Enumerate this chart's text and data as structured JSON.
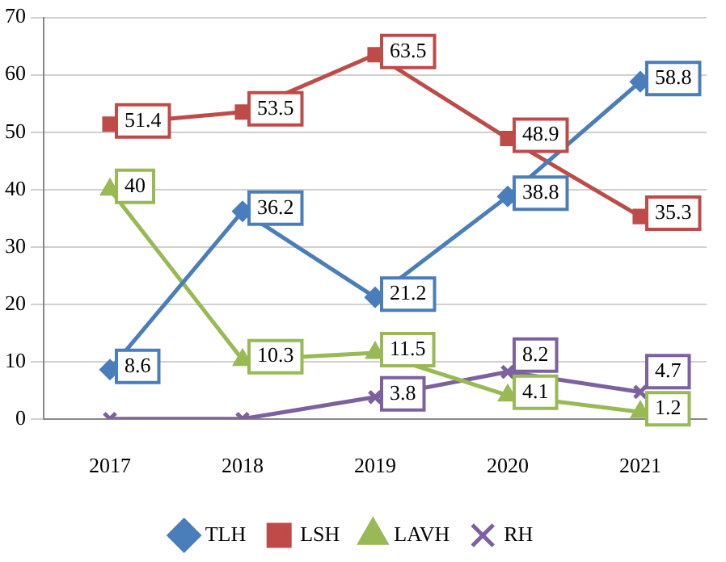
{
  "chart_data": {
    "type": "line",
    "categories": [
      "2017",
      "2018",
      "2019",
      "2020",
      "2021"
    ],
    "series": [
      {
        "name": "TLH",
        "color": "#4a7ebb",
        "marker": "diamond",
        "values": [
          8.6,
          36.2,
          21.2,
          38.8,
          58.8
        ],
        "value_labels": [
          "8.6",
          "36.2",
          "21.2",
          "38.8",
          "58.8"
        ]
      },
      {
        "name": "LSH",
        "color": "#be4b48",
        "marker": "square",
        "values": [
          51.4,
          53.5,
          63.5,
          48.9,
          35.3
        ],
        "value_labels": [
          "51.4",
          "53.5",
          "63.5",
          "48.9",
          "35.3"
        ]
      },
      {
        "name": "LAVH",
        "color": "#98b954",
        "marker": "triangle",
        "values": [
          40,
          10.3,
          11.5,
          4.1,
          1.2
        ],
        "value_labels": [
          "40",
          "10.3",
          "11.5",
          "4.1",
          "1.2"
        ]
      },
      {
        "name": "RH",
        "color": "#7d60a0",
        "marker": "cross",
        "values": [
          0,
          0,
          3.8,
          8.2,
          4.7
        ],
        "value_labels": [
          null,
          null,
          "3.8",
          "8.2",
          "4.7"
        ]
      }
    ],
    "ylim": [
      0,
      70
    ],
    "yticks": [
      0,
      10,
      20,
      30,
      40,
      50,
      60,
      70
    ],
    "grid": "y",
    "legend": "bottom",
    "line_style": "solid"
  }
}
